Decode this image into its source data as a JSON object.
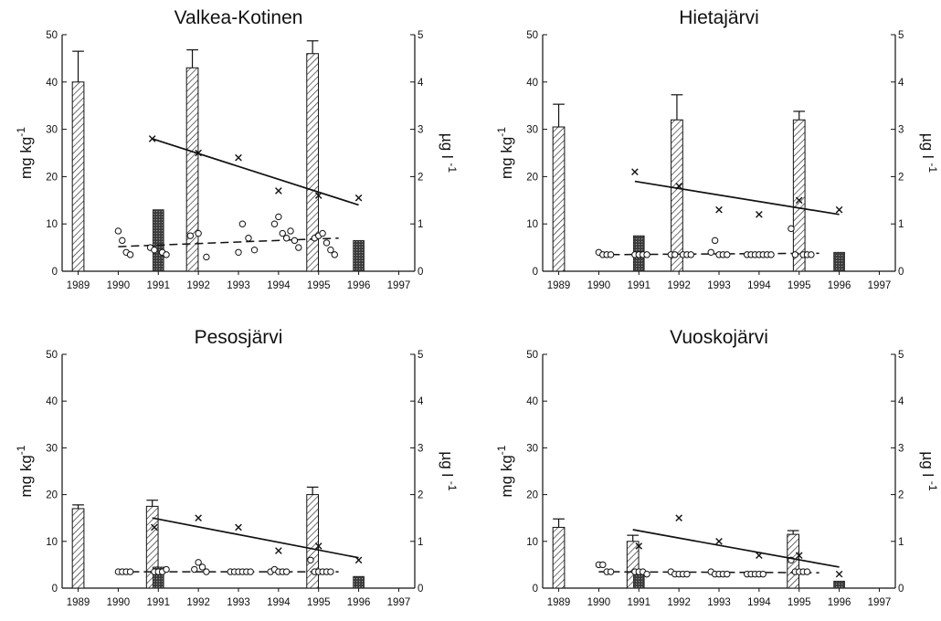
{
  "chart_data": [
    {
      "type": "bar",
      "title": "Valkea-Kotinen",
      "ylabel": "mg kg-1",
      "ylabel_base": "mg kg",
      "ylabel_sup": "-1",
      "y2label": "µg l -1",
      "y2label_base": "µg l",
      "y2label_sup": "-1",
      "ylim": [
        0,
        50
      ],
      "y2lim": [
        0,
        5
      ],
      "yticks": [
        "0",
        "10",
        "20",
        "30",
        "40",
        "50"
      ],
      "y2ticks": [
        "0",
        "1",
        "2",
        "3",
        "4",
        "5"
      ],
      "xlim": [
        1988.6,
        1997.4
      ],
      "categories": [
        "1989",
        "1990",
        "1991",
        "1992",
        "1993",
        "1994",
        "1995",
        "1996",
        "1997"
      ],
      "hatched_bars": [
        {
          "x": 1989,
          "value": 40,
          "error": 6.5
        },
        {
          "x": 1991.85,
          "value": 43,
          "error": 3.8
        },
        {
          "x": 1994.85,
          "value": 46,
          "error": 2.7
        }
      ],
      "solid_bars": [
        {
          "x": 1991,
          "value": 13
        },
        {
          "x": 1996,
          "value": 6.5
        }
      ],
      "cross_points": [
        [
          1990.85,
          2.8
        ],
        [
          1992,
          2.5
        ],
        [
          1993,
          2.4
        ],
        [
          1994,
          1.7
        ],
        [
          1995,
          1.6
        ],
        [
          1996,
          1.55
        ]
      ],
      "solid_trend": [
        [
          1990.85,
          2.8
        ],
        [
          1996,
          1.4
        ]
      ],
      "circle_points": [
        [
          1990,
          0.85
        ],
        [
          1990.1,
          0.65
        ],
        [
          1990.2,
          0.4
        ],
        [
          1990.3,
          0.35
        ],
        [
          1990.8,
          0.5
        ],
        [
          1990.9,
          0.45
        ],
        [
          1991.1,
          0.4
        ],
        [
          1991.2,
          0.35
        ],
        [
          1991.8,
          0.75
        ],
        [
          1992,
          0.8
        ],
        [
          1992.2,
          0.3
        ],
        [
          1993,
          0.4
        ],
        [
          1993.1,
          1.0
        ],
        [
          1993.25,
          0.7
        ],
        [
          1993.4,
          0.45
        ],
        [
          1993.9,
          1.0
        ],
        [
          1994,
          1.15
        ],
        [
          1994.1,
          0.8
        ],
        [
          1994.2,
          0.7
        ],
        [
          1994.3,
          0.85
        ],
        [
          1994.4,
          0.65
        ],
        [
          1994.5,
          0.5
        ],
        [
          1994.9,
          0.7
        ],
        [
          1995,
          0.75
        ],
        [
          1995.1,
          0.8
        ],
        [
          1995.2,
          0.6
        ],
        [
          1995.3,
          0.45
        ],
        [
          1995.4,
          0.35
        ]
      ],
      "dashed_trend": [
        [
          1990,
          0.52
        ],
        [
          1995.5,
          0.7
        ]
      ]
    },
    {
      "type": "bar",
      "title": "Hietajärvi",
      "ylabel": "mg kg-1",
      "ylabel_base": "mg kg",
      "ylabel_sup": "-1",
      "y2label": "µg l -1",
      "y2label_base": "µg l",
      "y2label_sup": "-1",
      "ylim": [
        0,
        50
      ],
      "y2lim": [
        0,
        5
      ],
      "yticks": [
        "0",
        "10",
        "20",
        "30",
        "40",
        "50"
      ],
      "y2ticks": [
        "0",
        "1",
        "2",
        "3",
        "4",
        "5"
      ],
      "xlim": [
        1988.6,
        1997.4
      ],
      "categories": [
        "1989",
        "1990",
        "1991",
        "1992",
        "1993",
        "1994",
        "1995",
        "1996",
        "1997"
      ],
      "hatched_bars": [
        {
          "x": 1989,
          "value": 30.5,
          "error": 4.8
        },
        {
          "x": 1991.95,
          "value": 32,
          "error": 5.3
        },
        {
          "x": 1995,
          "value": 32,
          "error": 1.8
        }
      ],
      "solid_bars": [
        {
          "x": 1991,
          "value": 7.5
        },
        {
          "x": 1996,
          "value": 4
        }
      ],
      "cross_points": [
        [
          1990.9,
          2.1
        ],
        [
          1992,
          1.8
        ],
        [
          1993,
          1.3
        ],
        [
          1994,
          1.2
        ],
        [
          1995,
          1.5
        ],
        [
          1996,
          1.3
        ]
      ],
      "solid_trend": [
        [
          1990.9,
          1.9
        ],
        [
          1996,
          1.2
        ]
      ],
      "circle_points": [
        [
          1990,
          0.4
        ],
        [
          1990.1,
          0.35
        ],
        [
          1990.2,
          0.35
        ],
        [
          1990.3,
          0.35
        ],
        [
          1990.9,
          0.35
        ],
        [
          1991,
          0.35
        ],
        [
          1991.1,
          0.35
        ],
        [
          1991.2,
          0.35
        ],
        [
          1991.8,
          0.35
        ],
        [
          1991.9,
          0.35
        ],
        [
          1992.1,
          0.35
        ],
        [
          1992.2,
          0.35
        ],
        [
          1992.3,
          0.35
        ],
        [
          1992.8,
          0.4
        ],
        [
          1992.9,
          0.65
        ],
        [
          1993,
          0.35
        ],
        [
          1993.1,
          0.35
        ],
        [
          1993.2,
          0.35
        ],
        [
          1993.7,
          0.35
        ],
        [
          1993.8,
          0.35
        ],
        [
          1993.9,
          0.35
        ],
        [
          1994,
          0.35
        ],
        [
          1994.1,
          0.35
        ],
        [
          1994.2,
          0.35
        ],
        [
          1994.3,
          0.35
        ],
        [
          1994.8,
          0.9
        ],
        [
          1994.9,
          0.35
        ],
        [
          1995.1,
          0.35
        ],
        [
          1995.2,
          0.35
        ],
        [
          1995.3,
          0.35
        ]
      ],
      "dashed_trend": [
        [
          1990,
          0.35
        ],
        [
          1995.5,
          0.38
        ]
      ]
    },
    {
      "type": "bar",
      "title": "Pesosjärvi",
      "ylabel": "mg kg-1",
      "ylabel_base": "mg kg",
      "ylabel_sup": "-1",
      "y2label": "µg l -1",
      "y2label_base": "µg l",
      "y2label_sup": "-1",
      "ylim": [
        0,
        50
      ],
      "y2lim": [
        0,
        5
      ],
      "yticks": [
        "0",
        "10",
        "20",
        "30",
        "40",
        "50"
      ],
      "y2ticks": [
        "0",
        "1",
        "2",
        "3",
        "4",
        "5"
      ],
      "xlim": [
        1988.6,
        1997.4
      ],
      "categories": [
        "1989",
        "1990",
        "1991",
        "1992",
        "1993",
        "1994",
        "1995",
        "1996",
        "1997"
      ],
      "hatched_bars": [
        {
          "x": 1989,
          "value": 17,
          "error": 0.8
        },
        {
          "x": 1990.85,
          "value": 17.5,
          "error": 1.3
        },
        {
          "x": 1994.85,
          "value": 20,
          "error": 1.6
        }
      ],
      "solid_bars": [
        {
          "x": 1991,
          "value": 4.5
        },
        {
          "x": 1996,
          "value": 2.5
        }
      ],
      "cross_points": [
        [
          1990.9,
          1.3
        ],
        [
          1992,
          1.5
        ],
        [
          1993,
          1.3
        ],
        [
          1994,
          0.8
        ],
        [
          1995,
          0.9
        ],
        [
          1996,
          0.6
        ]
      ],
      "solid_trend": [
        [
          1990.85,
          1.5
        ],
        [
          1996,
          0.65
        ]
      ],
      "circle_points": [
        [
          1990,
          0.35
        ],
        [
          1990.1,
          0.35
        ],
        [
          1990.2,
          0.35
        ],
        [
          1990.3,
          0.35
        ],
        [
          1990.9,
          0.35
        ],
        [
          1991,
          0.35
        ],
        [
          1991.1,
          0.35
        ],
        [
          1991.2,
          0.4
        ],
        [
          1991.9,
          0.4
        ],
        [
          1992,
          0.55
        ],
        [
          1992.1,
          0.45
        ],
        [
          1992.2,
          0.35
        ],
        [
          1992.8,
          0.35
        ],
        [
          1992.9,
          0.35
        ],
        [
          1993,
          0.35
        ],
        [
          1993.1,
          0.35
        ],
        [
          1993.2,
          0.35
        ],
        [
          1993.3,
          0.35
        ],
        [
          1993.8,
          0.35
        ],
        [
          1993.9,
          0.4
        ],
        [
          1994,
          0.35
        ],
        [
          1994.1,
          0.35
        ],
        [
          1994.2,
          0.35
        ],
        [
          1994.8,
          0.6
        ],
        [
          1994.9,
          0.35
        ],
        [
          1995,
          0.35
        ],
        [
          1995.1,
          0.35
        ],
        [
          1995.2,
          0.35
        ],
        [
          1995.3,
          0.35
        ]
      ],
      "dashed_trend": [
        [
          1990,
          0.35
        ],
        [
          1995.5,
          0.35
        ]
      ]
    },
    {
      "type": "bar",
      "title": "Vuoskojärvi",
      "ylabel": "mg kg-1",
      "ylabel_base": "mg kg",
      "ylabel_sup": "-1",
      "y2label": "µg l -1",
      "y2label_base": "µg l",
      "y2label_sup": "-1",
      "ylim": [
        0,
        50
      ],
      "y2lim": [
        0,
        5
      ],
      "yticks": [
        "0",
        "10",
        "20",
        "30",
        "40",
        "50"
      ],
      "y2ticks": [
        "0",
        "1",
        "2",
        "3",
        "4",
        "5"
      ],
      "xlim": [
        1988.6,
        1997.4
      ],
      "categories": [
        "1989",
        "1990",
        "1991",
        "1992",
        "1993",
        "1994",
        "1995",
        "1996",
        "1997"
      ],
      "hatched_bars": [
        {
          "x": 1989,
          "value": 13,
          "error": 1.8
        },
        {
          "x": 1990.85,
          "value": 10,
          "error": 1.3
        },
        {
          "x": 1994.85,
          "value": 11.5,
          "error": 0.8
        }
      ],
      "solid_bars": [
        {
          "x": 1991,
          "value": 3.5
        },
        {
          "x": 1996,
          "value": 1.5
        }
      ],
      "cross_points": [
        [
          1991,
          0.9
        ],
        [
          1992,
          1.5
        ],
        [
          1993,
          1.0
        ],
        [
          1994,
          0.7
        ],
        [
          1995,
          0.7
        ],
        [
          1996,
          0.3
        ]
      ],
      "solid_trend": [
        [
          1990.85,
          1.25
        ],
        [
          1996,
          0.45
        ]
      ],
      "circle_points": [
        [
          1990,
          0.5
        ],
        [
          1990.1,
          0.5
        ],
        [
          1990.2,
          0.35
        ],
        [
          1990.3,
          0.35
        ],
        [
          1990.9,
          0.35
        ],
        [
          1991,
          0.35
        ],
        [
          1991.1,
          0.35
        ],
        [
          1991.2,
          0.3
        ],
        [
          1991.8,
          0.35
        ],
        [
          1991.9,
          0.3
        ],
        [
          1992,
          0.3
        ],
        [
          1992.1,
          0.3
        ],
        [
          1992.2,
          0.3
        ],
        [
          1992.8,
          0.35
        ],
        [
          1992.9,
          0.3
        ],
        [
          1993,
          0.3
        ],
        [
          1993.1,
          0.3
        ],
        [
          1993.2,
          0.3
        ],
        [
          1993.7,
          0.3
        ],
        [
          1993.8,
          0.3
        ],
        [
          1993.9,
          0.3
        ],
        [
          1994,
          0.3
        ],
        [
          1994.1,
          0.3
        ],
        [
          1994.8,
          0.6
        ],
        [
          1994.9,
          0.35
        ],
        [
          1995,
          0.35
        ],
        [
          1995.1,
          0.35
        ],
        [
          1995.2,
          0.35
        ]
      ],
      "dashed_trend": [
        [
          1990,
          0.35
        ],
        [
          1995.5,
          0.33
        ]
      ]
    }
  ]
}
